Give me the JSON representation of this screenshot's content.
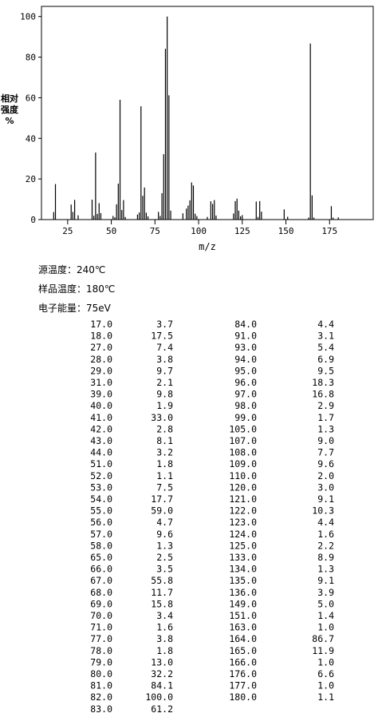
{
  "chart_data": {
    "type": "bar",
    "xlabel": "m/z",
    "ylabel": [
      "相对",
      "强度",
      "%"
    ],
    "xlim": [
      10,
      200
    ],
    "xticks": [
      25,
      50,
      75,
      100,
      125,
      150,
      175
    ],
    "ylim": [
      0,
      105
    ],
    "yticks": [
      0,
      20,
      40,
      60,
      80,
      100
    ],
    "color": "#000000",
    "x": [
      17,
      18,
      27,
      28,
      29,
      31,
      39,
      40,
      41,
      42,
      43,
      44,
      51,
      52,
      53,
      54,
      55,
      56,
      57,
      58,
      65,
      66,
      67,
      68,
      69,
      70,
      71,
      77,
      78,
      79,
      80,
      81,
      82,
      83,
      84,
      91,
      93,
      94,
      95,
      96,
      97,
      98,
      99,
      105,
      107,
      108,
      109,
      110,
      120,
      121,
      122,
      123,
      124,
      125,
      133,
      134,
      135,
      136,
      149,
      151,
      163,
      164,
      165,
      166,
      176,
      177,
      180
    ],
    "x_labels": [
      "17.0",
      "18.0",
      "27.0",
      "28.0",
      "29.0",
      "31.0",
      "39.0",
      "40.0",
      "41.0",
      "42.0",
      "43.0",
      "44.0",
      "51.0",
      "52.0",
      "53.0",
      "54.0",
      "55.0",
      "56.0",
      "57.0",
      "58.0",
      "65.0",
      "66.0",
      "67.0",
      "68.0",
      "69.0",
      "70.0",
      "71.0",
      "77.0",
      "78.0",
      "79.0",
      "80.0",
      "81.0",
      "82.0",
      "83.0",
      "84.0",
      "91.0",
      "93.0",
      "94.0",
      "95.0",
      "96.0",
      "97.0",
      "98.0",
      "99.0",
      "105.0",
      "107.0",
      "108.0",
      "109.0",
      "110.0",
      "120.0",
      "121.0",
      "122.0",
      "123.0",
      "124.0",
      "125.0",
      "133.0",
      "134.0",
      "135.0",
      "136.0",
      "149.0",
      "151.0",
      "163.0",
      "164.0",
      "165.0",
      "166.0",
      "176.0",
      "177.0",
      "180.0"
    ],
    "values": [
      3.7,
      17.5,
      7.4,
      3.8,
      9.7,
      2.1,
      9.8,
      1.9,
      33,
      2.8,
      8.1,
      3.2,
      1.8,
      1.1,
      7.5,
      17.7,
      59,
      4.7,
      9.6,
      1.3,
      2.5,
      3.5,
      55.8,
      11.7,
      15.8,
      3.4,
      1.6,
      3.8,
      1.8,
      13,
      32.2,
      84.1,
      100,
      61.2,
      4.4,
      3.1,
      5.4,
      6.9,
      9.5,
      18.3,
      16.8,
      2.9,
      1.7,
      1.3,
      9,
      7.7,
      9.6,
      2,
      3,
      9.1,
      10.3,
      4.4,
      1.6,
      2.2,
      8.9,
      1.3,
      9.1,
      3.9,
      5,
      1.4,
      1,
      86.7,
      11.9,
      1,
      6.6,
      1,
      1.1
    ],
    "value_labels": [
      "3.7",
      "17.5",
      "7.4",
      "3.8",
      "9.7",
      "2.1",
      "9.8",
      "1.9",
      "33.0",
      "2.8",
      "8.1",
      "3.2",
      "1.8",
      "1.1",
      "7.5",
      "17.7",
      "59.0",
      "4.7",
      "9.6",
      "1.3",
      "2.5",
      "3.5",
      "55.8",
      "11.7",
      "15.8",
      "3.4",
      "1.6",
      "3.8",
      "1.8",
      "13.0",
      "32.2",
      "84.1",
      "100.0",
      "61.2",
      "4.4",
      "3.1",
      "5.4",
      "6.9",
      "9.5",
      "18.3",
      "16.8",
      "2.9",
      "1.7",
      "1.3",
      "9.0",
      "7.7",
      "9.6",
      "2.0",
      "3.0",
      "9.1",
      "10.3",
      "4.4",
      "1.6",
      "2.2",
      "8.9",
      "1.3",
      "9.1",
      "3.9",
      "5.0",
      "1.4",
      "1.0",
      "86.7",
      "11.9",
      "1.0",
      "6.6",
      "1.0",
      "1.1"
    ]
  },
  "info": [
    "源温度：240℃",
    "样品温度：180℃",
    "电子能量：75eV"
  ],
  "table_split": 34
}
